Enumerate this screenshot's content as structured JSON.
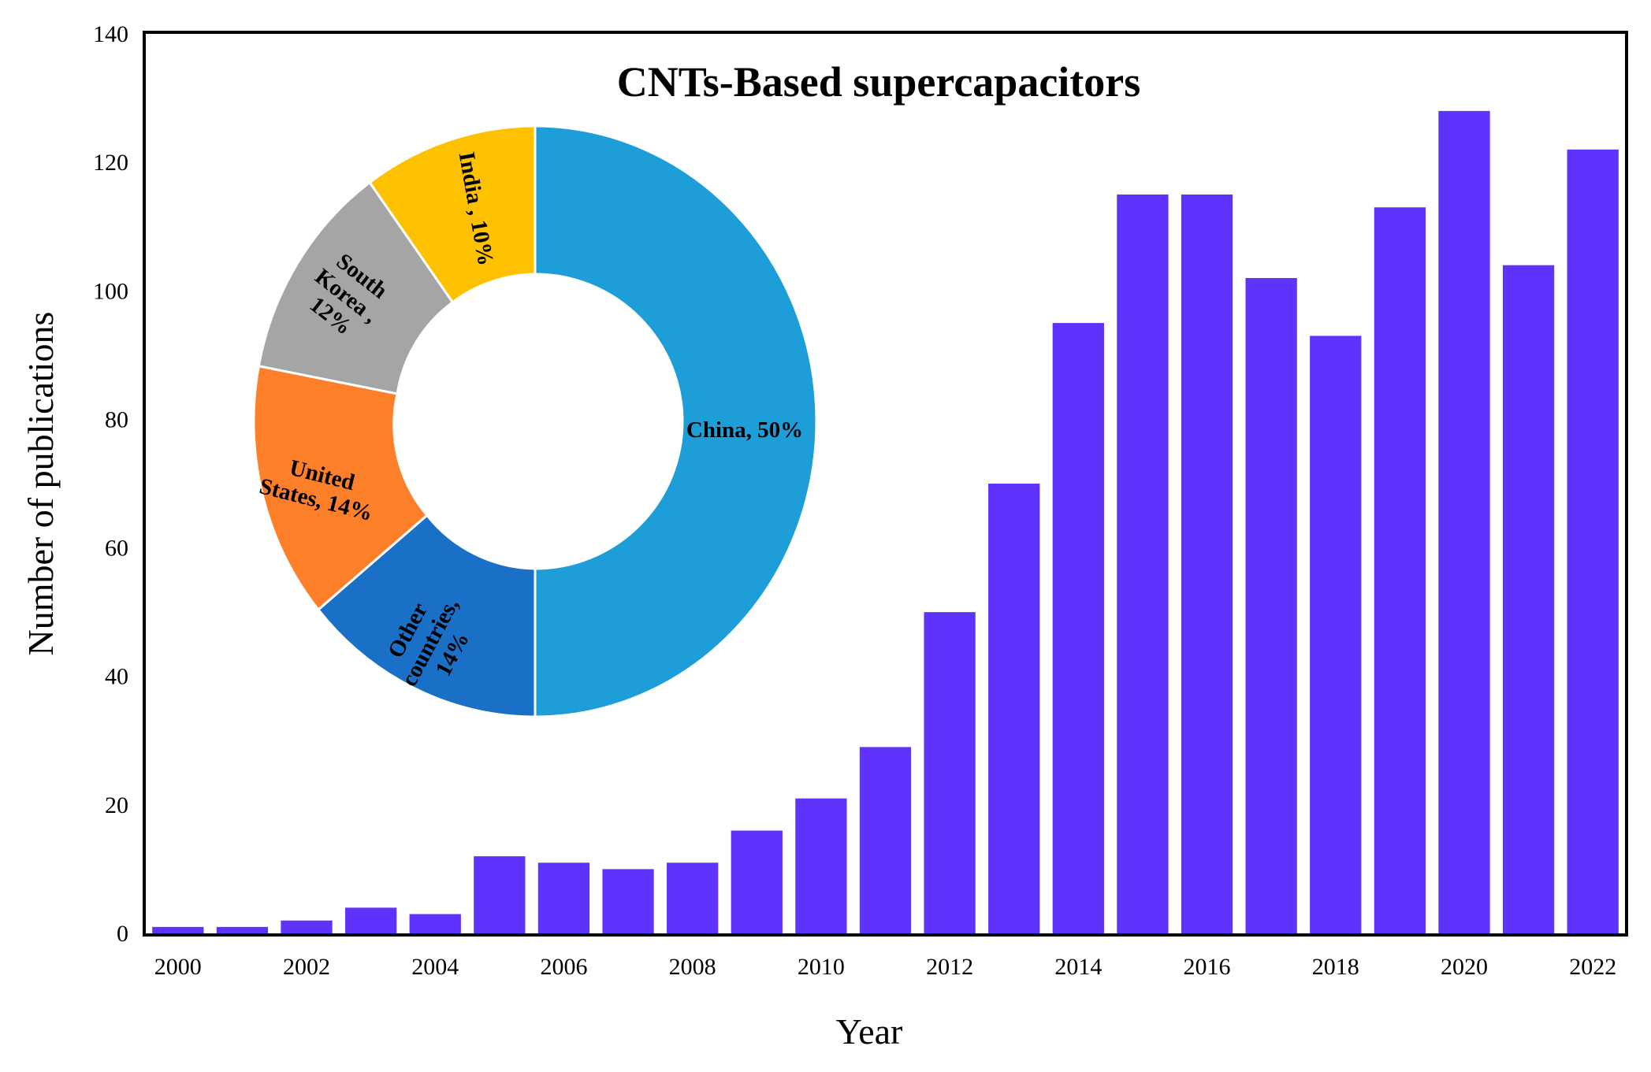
{
  "chart_data": [
    {
      "type": "bar",
      "title": "CNTs-Based supercapacitors",
      "xlabel": "Year",
      "ylabel": "Number of publications",
      "ylim": [
        0,
        140
      ],
      "yticks": [
        "0",
        "20",
        "40",
        "60",
        "80",
        "100",
        "120",
        "140"
      ],
      "xtick_labels": [
        "2000",
        "2002",
        "2004",
        "2006",
        "2008",
        "2010",
        "2012",
        "2014",
        "2016",
        "2018",
        "2020",
        "2022"
      ],
      "categories": [
        "2000",
        "2001",
        "2002",
        "2003",
        "2004",
        "2005",
        "2006",
        "2007",
        "2008",
        "2009",
        "2010",
        "2011",
        "2012",
        "2013",
        "2014",
        "2015",
        "2016",
        "2017",
        "2018",
        "2019",
        "2020",
        "2021",
        "2022"
      ],
      "values": [
        1,
        1,
        2,
        4,
        3,
        12,
        11,
        10,
        11,
        16,
        21,
        29,
        50,
        70,
        95,
        115,
        115,
        102,
        93,
        113,
        128,
        104,
        122
      ],
      "bar_color": "#5f33fb",
      "grid": false
    },
    {
      "type": "pie",
      "style": "donut",
      "slices": [
        {
          "name": "China",
          "value": 50,
          "color": "#1e9ed9",
          "label_lines": [
            "China, 50%"
          ]
        },
        {
          "name": "Other countries",
          "value": 14,
          "color": "#1a6fc7",
          "label_lines": [
            "Other",
            "countries,",
            "14%"
          ]
        },
        {
          "name": "United States",
          "value": 14,
          "color": "#fd7f2a",
          "label_lines": [
            "United",
            "States, 14%"
          ]
        },
        {
          "name": "South Korea",
          "value": 12,
          "color": "#a5a5a5",
          "label_lines": [
            "South",
            "Korea ,",
            "12%"
          ]
        },
        {
          "name": "India",
          "value": 10,
          "color": "#fec100",
          "label_lines": [
            "India , 10%"
          ]
        }
      ]
    }
  ]
}
